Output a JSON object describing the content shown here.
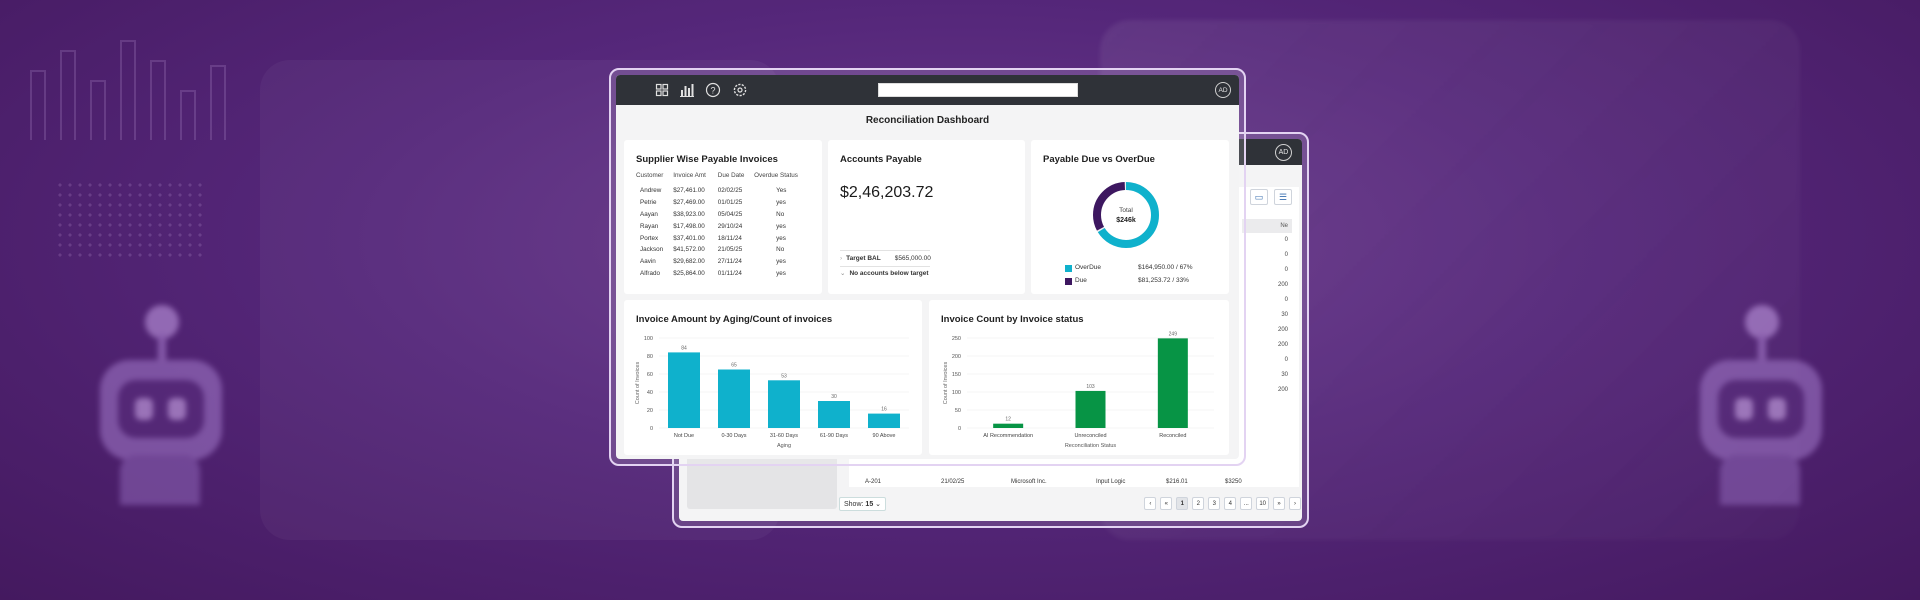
{
  "colors": {
    "teal": "#0fb1cc",
    "purple": "#3d1760",
    "green": "#079445",
    "topbar": "#2f3238"
  },
  "icons": [
    "grid-icon",
    "bar-chart-icon",
    "help-icon",
    "settings-icon"
  ],
  "header": {
    "avatar": "AD",
    "title": "Reconciliation Dashboard"
  },
  "supplier": {
    "title": "Supplier Wise Payable Invoices",
    "columns": [
      "Customer",
      "Invoice Amt",
      "Due Date",
      "Overdue Status"
    ],
    "rows": [
      [
        "Andrew",
        "$27,461.00",
        "02/02/25",
        "Yes"
      ],
      [
        "Petrie",
        "$27,469.00",
        "01/01/25",
        "yes"
      ],
      [
        "Aayan",
        "$38,923.00",
        "05/04/25",
        "No"
      ],
      [
        "Rayan",
        "$17,498.00",
        "29/10/24",
        "yes"
      ],
      [
        "Portex",
        "$37,401.00",
        "18/11/24",
        "yes"
      ],
      [
        "Jackson",
        "$41,572.00",
        "21/05/25",
        "No"
      ],
      [
        "Aavin",
        "$29,682.00",
        "27/11/24",
        "yes"
      ],
      [
        "Alfrado",
        "$25,864.00",
        "01/11/24",
        "yes"
      ]
    ]
  },
  "accounts": {
    "title": "Accounts Payable",
    "value": "$2,46,203.72",
    "target_label": "Target BAL",
    "target_value": "$565,000.00",
    "below_label": "No accounts below target"
  },
  "due": {
    "title": "Payable Due vs OverDue",
    "center_label": "Total",
    "center_value": "$246k",
    "legend": [
      {
        "name": "OverDue",
        "value": "$164,950.00 / 67%",
        "color": "#0fb1cc",
        "pct": 67
      },
      {
        "name": "Due",
        "value": "$81,253.72 / 33%",
        "color": "#3d1760",
        "pct": 33
      }
    ]
  },
  "aging": {
    "title": "Invoice Amount by Aging/Count of invoices",
    "chart_data": {
      "type": "bar",
      "categories": [
        "Not Due",
        "0-30 Days",
        "31-60 Days",
        "61-90 Days",
        "90 Above"
      ],
      "values": [
        84,
        65,
        53,
        30,
        16
      ],
      "ylim": [
        0,
        100
      ],
      "yticks": [
        0,
        20,
        40,
        60,
        80,
        100
      ],
      "xlabel": "Aging",
      "ylabel": "Count of Invoices"
    }
  },
  "status": {
    "title": "Invoice Count by Invoice status",
    "chart_data": {
      "type": "bar",
      "categories": [
        "AI Recommendation",
        "Unreconciled",
        "Reconciled"
      ],
      "values": [
        12,
        103,
        249
      ],
      "ylim": [
        0,
        250
      ],
      "yticks": [
        0,
        50,
        100,
        150,
        200,
        250
      ],
      "xlabel": "Reconciliation Status",
      "ylabel": "Count of Invoices"
    }
  },
  "back": {
    "avatar": "AD",
    "col_head": "Ne",
    "col_values": [
      "0",
      "0",
      "0",
      "200",
      "0",
      "30",
      "200",
      "200",
      "0",
      "30",
      "200"
    ],
    "row_a": [
      "A-201",
      "21/02/25",
      "Microsoft Inc.",
      "Input Logic",
      "$216.01",
      "$3250"
    ],
    "show_label": "Show:",
    "show_value": "15",
    "pages": [
      "‹",
      "«",
      "1",
      "2",
      "3",
      "4",
      "...",
      "10",
      "»",
      "›"
    ]
  }
}
